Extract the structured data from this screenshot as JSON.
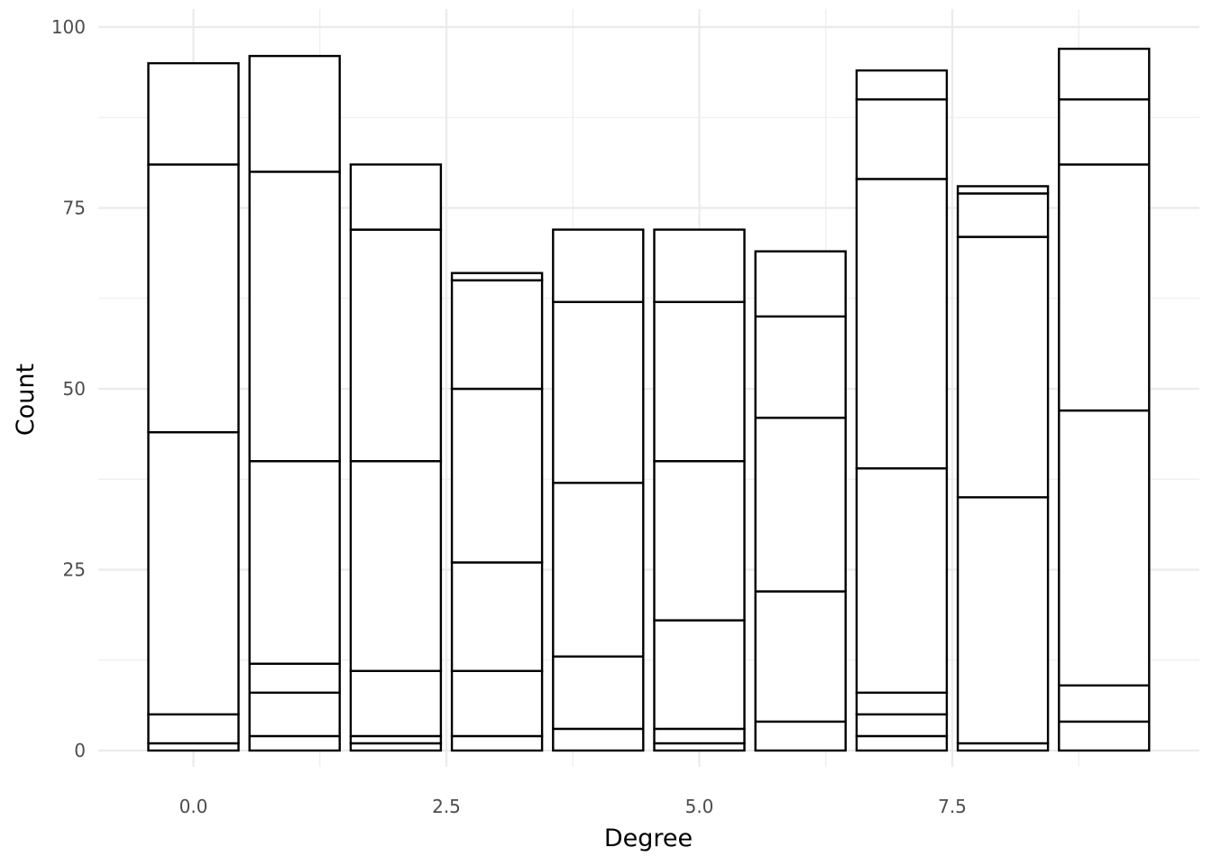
{
  "chart_data": {
    "type": "bar",
    "stacked": true,
    "title": "",
    "xlabel": "Degree",
    "ylabel": "Count",
    "xlim": [
      -1,
      10
    ],
    "ylim": [
      0,
      100
    ],
    "x_ticks": [
      0.0,
      2.5,
      5.0,
      7.5
    ],
    "x_tick_labels": [
      "0.0",
      "2.5",
      "5.0",
      "7.5"
    ],
    "y_ticks": [
      0,
      25,
      50,
      75,
      100
    ],
    "y_tick_labels": [
      "0",
      "25",
      "50",
      "75",
      "100"
    ],
    "grid": true,
    "legend": "none",
    "fill_color": "#ffffff",
    "outline_color": "#000000",
    "bars": [
      {
        "x": 0,
        "total": 95,
        "boundaries": [
          1,
          5,
          44,
          81
        ]
      },
      {
        "x": 1,
        "total": 96,
        "boundaries": [
          2,
          8,
          12,
          40,
          80
        ]
      },
      {
        "x": 2,
        "total": 81,
        "boundaries": [
          1,
          2,
          11,
          40,
          72
        ]
      },
      {
        "x": 3,
        "total": 66,
        "boundaries": [
          2,
          11,
          26,
          50,
          65
        ]
      },
      {
        "x": 4,
        "total": 72,
        "boundaries": [
          3,
          13,
          37,
          62
        ]
      },
      {
        "x": 5,
        "total": 72,
        "boundaries": [
          1,
          3,
          18,
          40,
          62
        ]
      },
      {
        "x": 6,
        "total": 69,
        "boundaries": [
          4,
          22,
          46,
          60
        ]
      },
      {
        "x": 7,
        "total": 94,
        "boundaries": [
          2,
          5,
          8,
          39,
          79,
          90
        ]
      },
      {
        "x": 8,
        "total": 78,
        "boundaries": [
          1,
          35,
          71,
          77
        ]
      },
      {
        "x": 9,
        "total": 97,
        "boundaries": [
          4,
          9,
          47,
          81,
          90
        ]
      }
    ]
  }
}
